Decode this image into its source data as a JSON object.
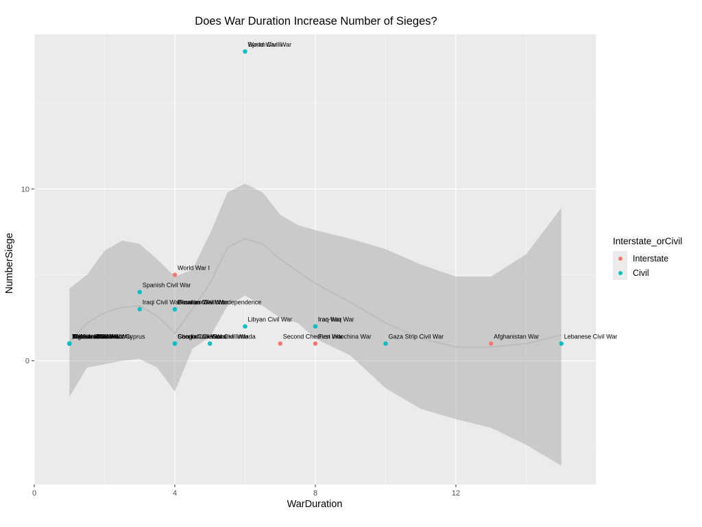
{
  "chart_data": {
    "type": "scatter",
    "title": "Does War Duration Increase Number of Sieges?",
    "xlabel": "WarDuration",
    "ylabel": "NumberSiege",
    "xlim": [
      0,
      16
    ],
    "ylim": [
      -7.2,
      19
    ],
    "x_ticks": [
      0,
      4,
      8,
      12
    ],
    "y_ticks": [
      0,
      10
    ],
    "grid": true,
    "legend": {
      "title": "Interstate_orCivil",
      "placement": "right",
      "entries": [
        {
          "name": "Interstate",
          "color": "#F8766D"
        },
        {
          "name": "Civil",
          "color": "#00BFC4"
        }
      ]
    },
    "series": [
      {
        "name": "Interstate",
        "color": "#F8766D",
        "points": [
          {
            "x": 4,
            "y": 5,
            "label": "World War I"
          },
          {
            "x": 6,
            "y": 18,
            "label": "World War II"
          },
          {
            "x": 7,
            "y": 1,
            "label": "Second Chechen War"
          },
          {
            "x": 8,
            "y": 2,
            "label": "Iran-Iraq War"
          },
          {
            "x": 8,
            "y": 1,
            "label": "First Indochina War"
          },
          {
            "x": 13,
            "y": 1,
            "label": "Afghanistan War"
          }
        ]
      },
      {
        "name": "Civil",
        "color": "#00BFC4",
        "points": [
          {
            "x": 6,
            "y": 18,
            "label": "Syrian Civil War"
          },
          {
            "x": 3,
            "y": 4,
            "label": "Spanish Civil War"
          },
          {
            "x": 4,
            "y": 3,
            "label": "Ukranian Civil War"
          },
          {
            "x": 4,
            "y": 3,
            "label": "Bosnian Civil War"
          },
          {
            "x": 4,
            "y": 3,
            "label": "Croatian War of Independence"
          },
          {
            "x": 3,
            "y": 3,
            "label": "Iraqi Civil War"
          },
          {
            "x": 6,
            "y": 2,
            "label": "Libyan Civil War"
          },
          {
            "x": 8,
            "y": 2,
            "label": "Iraq War"
          },
          {
            "x": 4,
            "y": 1,
            "label": "Second Liberian Civil War"
          },
          {
            "x": 4,
            "y": 1,
            "label": "Congo Civil War"
          },
          {
            "x": 4,
            "y": 1,
            "label": "Chadian Civil War"
          },
          {
            "x": 5,
            "y": 1,
            "label": "Second Intifada"
          },
          {
            "x": 10,
            "y": 1,
            "label": "Gaza Strip Civil War"
          },
          {
            "x": 15,
            "y": 1,
            "label": "Lebanese Civil War"
          },
          {
            "x": 1,
            "y": 1,
            "label": "Vietnam War"
          },
          {
            "x": 1,
            "y": 1,
            "label": "Lebanon War"
          },
          {
            "x": 1,
            "y": 1,
            "label": "Algerian Civil War"
          },
          {
            "x": 1,
            "y": 1,
            "label": "Yemeni Civil War"
          },
          {
            "x": 1,
            "y": 1,
            "label": "1948 Arab-Israeli War"
          },
          {
            "x": 1,
            "y": 1,
            "label": "Turkish Invasion of Cyprus"
          },
          {
            "x": 1,
            "y": 1,
            "label": "Lebanese Civil War"
          },
          {
            "x": 1,
            "y": 1,
            "label": "Bosnian Civil War"
          }
        ]
      }
    ],
    "smooth": {
      "method": "loess",
      "fit": [
        {
          "x": 1,
          "y": 1.1
        },
        {
          "x": 1.5,
          "y": 2.2
        },
        {
          "x": 2,
          "y": 2.8
        },
        {
          "x": 2.5,
          "y": 3.1
        },
        {
          "x": 3,
          "y": 3.2
        },
        {
          "x": 3.5,
          "y": 2.6
        },
        {
          "x": 4,
          "y": 1.6
        },
        {
          "x": 4.5,
          "y": 3.0
        },
        {
          "x": 5,
          "y": 4.5
        },
        {
          "x": 5.5,
          "y": 6.6
        },
        {
          "x": 6,
          "y": 7.1
        },
        {
          "x": 6.5,
          "y": 6.8
        },
        {
          "x": 7,
          "y": 5.9
        },
        {
          "x": 7.5,
          "y": 5.2
        },
        {
          "x": 8,
          "y": 4.5
        },
        {
          "x": 9,
          "y": 3.4
        },
        {
          "x": 10,
          "y": 2.2
        },
        {
          "x": 11,
          "y": 1.3
        },
        {
          "x": 12,
          "y": 0.8
        },
        {
          "x": 13,
          "y": 0.8
        },
        {
          "x": 14,
          "y": 1.0
        },
        {
          "x": 15,
          "y": 1.5
        }
      ],
      "upper": [
        {
          "x": 1,
          "y": 4.2
        },
        {
          "x": 1.5,
          "y": 5.0
        },
        {
          "x": 2,
          "y": 6.4
        },
        {
          "x": 2.5,
          "y": 7.0
        },
        {
          "x": 3,
          "y": 6.8
        },
        {
          "x": 3.5,
          "y": 5.9
        },
        {
          "x": 4,
          "y": 4.9
        },
        {
          "x": 4.5,
          "y": 5.3
        },
        {
          "x": 5,
          "y": 7.4
        },
        {
          "x": 5.5,
          "y": 9.8
        },
        {
          "x": 6,
          "y": 10.3
        },
        {
          "x": 6.5,
          "y": 9.8
        },
        {
          "x": 7,
          "y": 8.5
        },
        {
          "x": 7.5,
          "y": 7.9
        },
        {
          "x": 8,
          "y": 7.6
        },
        {
          "x": 9,
          "y": 7.1
        },
        {
          "x": 10,
          "y": 6.5
        },
        {
          "x": 11,
          "y": 5.6
        },
        {
          "x": 12,
          "y": 4.9
        },
        {
          "x": 13,
          "y": 4.9
        },
        {
          "x": 14,
          "y": 6.2
        },
        {
          "x": 15,
          "y": 8.9
        }
      ],
      "lower": [
        {
          "x": 1,
          "y": -2.1
        },
        {
          "x": 1.5,
          "y": -0.4
        },
        {
          "x": 2,
          "y": -0.2
        },
        {
          "x": 2.5,
          "y": 0.0
        },
        {
          "x": 3,
          "y": 0.1
        },
        {
          "x": 3.5,
          "y": -0.4
        },
        {
          "x": 4,
          "y": -1.8
        },
        {
          "x": 4.5,
          "y": 0.7
        },
        {
          "x": 5,
          "y": 1.4
        },
        {
          "x": 5.5,
          "y": 3.2
        },
        {
          "x": 6,
          "y": 3.8
        },
        {
          "x": 6.5,
          "y": 3.2
        },
        {
          "x": 7,
          "y": 2.5
        },
        {
          "x": 7.5,
          "y": 2.2
        },
        {
          "x": 8,
          "y": 1.3
        },
        {
          "x": 9,
          "y": 0.3
        },
        {
          "x": 10,
          "y": -1.6
        },
        {
          "x": 11,
          "y": -2.8
        },
        {
          "x": 12,
          "y": -3.4
        },
        {
          "x": 13,
          "y": -3.9
        },
        {
          "x": 14,
          "y": -4.9
        },
        {
          "x": 15,
          "y": -6.1
        }
      ]
    }
  }
}
